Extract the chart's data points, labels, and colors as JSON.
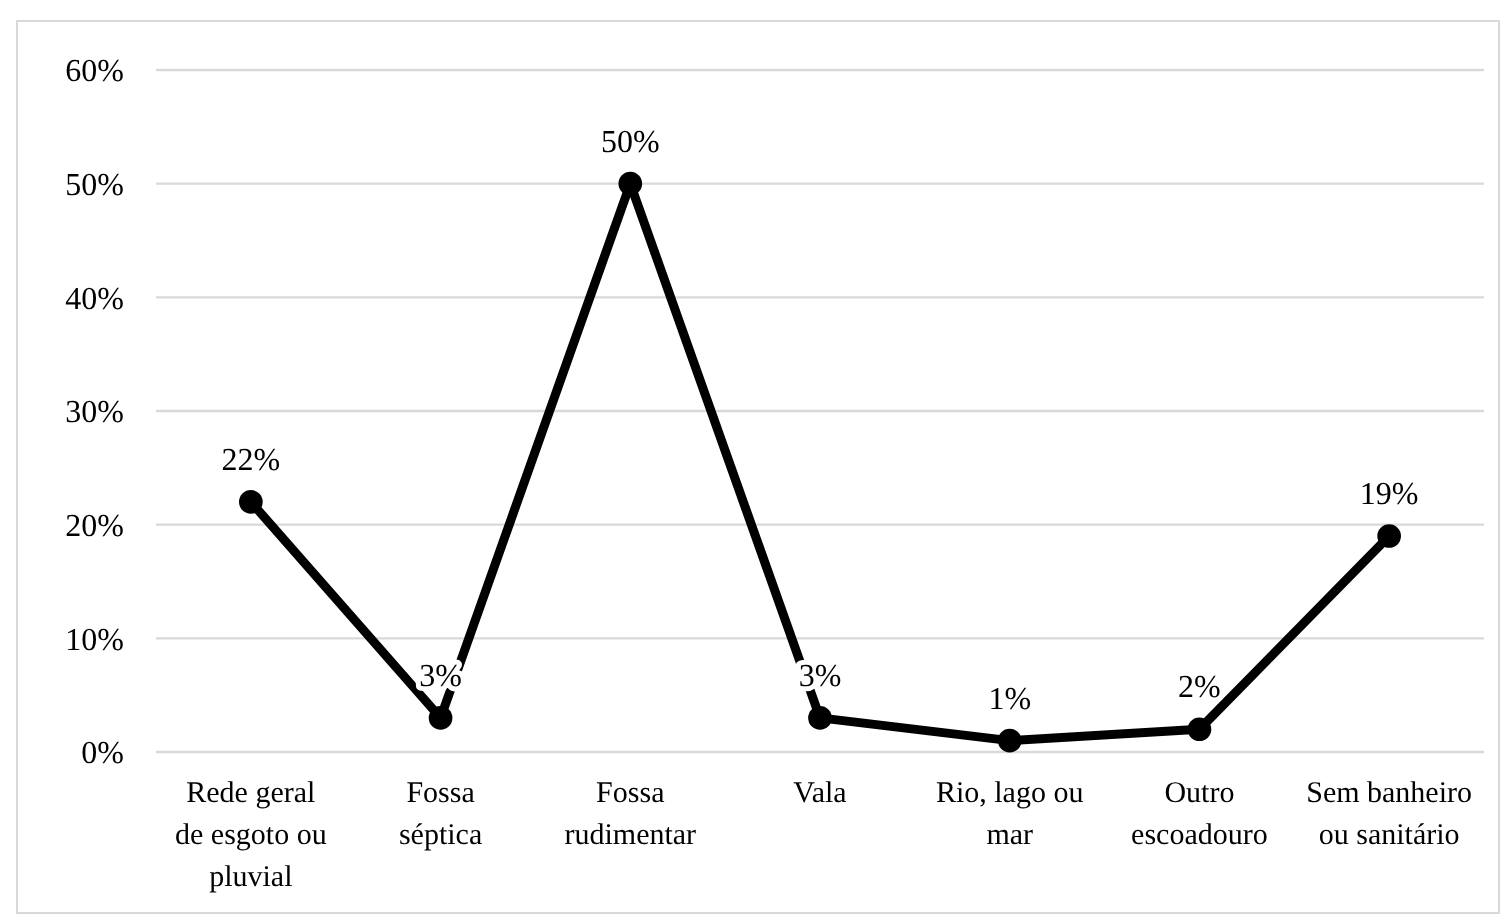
{
  "chart_data": {
    "type": "line",
    "categories": [
      "Rede geral de esgoto ou pluvial",
      "Fossa séptica",
      "Fossa rudimentar",
      "Vala",
      "Rio, lago ou mar",
      "Outro escoadouro",
      "Sem banheiro ou sanitário"
    ],
    "series": [
      {
        "color": "#000000",
        "values": [
          22,
          3,
          50,
          3,
          1,
          2,
          19
        ],
        "value_labels": [
          "22%",
          "3%",
          "50%",
          "3%",
          "1%",
          "2%",
          "19%"
        ]
      }
    ],
    "ylim": [
      0,
      60
    ],
    "yticks": [
      {
        "value": 0,
        "label": "0%"
      },
      {
        "value": 10,
        "label": "10%"
      },
      {
        "value": 20,
        "label": "20%"
      },
      {
        "value": 30,
        "label": "30%"
      },
      {
        "value": 40,
        "label": "40%"
      },
      {
        "value": 50,
        "label": "50%"
      },
      {
        "value": 60,
        "label": "60%"
      }
    ],
    "grid": "y",
    "marker": "circle",
    "line_style": "solid"
  }
}
